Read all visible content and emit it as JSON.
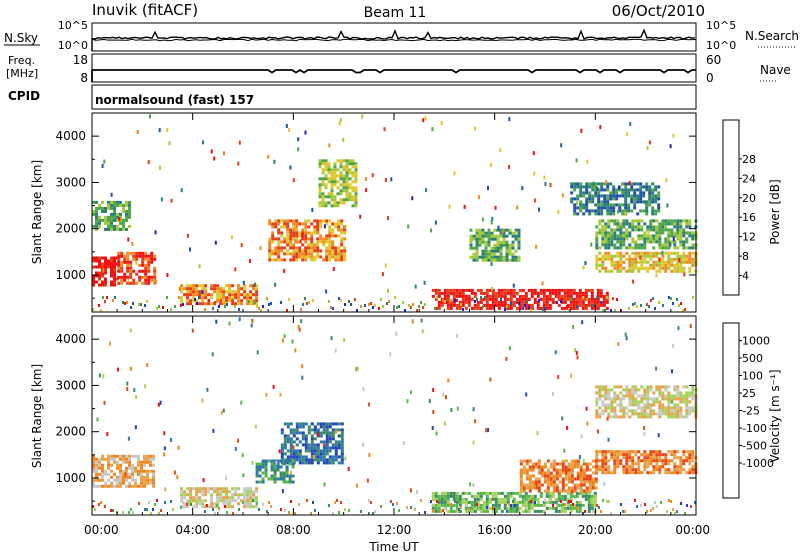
{
  "header": {
    "station": "Inuvik (fitACF)",
    "beam": "Beam 11",
    "date": "06/Oct/2010"
  },
  "strips": {
    "nsky": {
      "left_label": "N.Sky",
      "right_label": "N.Search",
      "left_ticks": [
        "10^5",
        "10^0"
      ],
      "right_ticks": [
        "10^5",
        "10^0"
      ]
    },
    "freq": {
      "left_label_line1": "Freq.",
      "left_label_line2": "[MHz]",
      "right_label": "Nave",
      "left_ticks": [
        "18",
        "8"
      ],
      "right_ticks": [
        "60",
        "0"
      ]
    },
    "cpid": {
      "left_label": "CPID",
      "text": "normalsound (fast) 157"
    }
  },
  "chart_data": [
    {
      "type": "heatmap",
      "quantity": "Power",
      "ylabel": "Slant Range [km]",
      "ylim": [
        200,
        4500
      ],
      "yticks": [
        1000,
        2000,
        3000,
        4000
      ],
      "xlim_hours": [
        0,
        24
      ],
      "colorbar": {
        "label": "Power [dB]",
        "ticks": [
          "4",
          "8",
          "12",
          "16",
          "20",
          "24",
          "28"
        ],
        "colors": [
          "#1e1ed2",
          "#2250b0",
          "#2a8078",
          "#4ea648",
          "#a6c83a",
          "#e0c82c",
          "#f08a22",
          "#e83c18",
          "#f01010"
        ]
      },
      "echo_regions": [
        {
          "t": [
            0.0,
            1.0
          ],
          "r": [
            800,
            1400
          ],
          "level": 8
        },
        {
          "t": [
            1.0,
            2.5
          ],
          "r": [
            800,
            1500
          ],
          "level": 7
        },
        {
          "t": [
            0.0,
            1.5
          ],
          "r": [
            2000,
            2600
          ],
          "level": 3
        },
        {
          "t": [
            3.5,
            6.5
          ],
          "r": [
            400,
            800
          ],
          "level": 6
        },
        {
          "t": [
            7.0,
            10.0
          ],
          "r": [
            1300,
            2200
          ],
          "level": 6
        },
        {
          "t": [
            9.0,
            10.5
          ],
          "r": [
            2500,
            3500
          ],
          "level": 4
        },
        {
          "t": [
            13.5,
            20.5
          ],
          "r": [
            250,
            700
          ],
          "level": 8
        },
        {
          "t": [
            15.0,
            17.0
          ],
          "r": [
            1300,
            2000
          ],
          "level": 3
        },
        {
          "t": [
            19.0,
            22.5
          ],
          "r": [
            2300,
            3000
          ],
          "level": 2
        },
        {
          "t": [
            20.0,
            24.0
          ],
          "r": [
            1100,
            1500
          ],
          "level": 5
        },
        {
          "t": [
            20.0,
            24.0
          ],
          "r": [
            1600,
            2200
          ],
          "level": 3
        }
      ]
    },
    {
      "type": "heatmap",
      "quantity": "Velocity",
      "ylabel": "Slant Range [km]",
      "ylim": [
        200,
        4500
      ],
      "yticks": [
        1000,
        2000,
        3000,
        4000
      ],
      "xlim_hours": [
        0,
        24
      ],
      "xticks": [
        "00:00",
        "04:00",
        "08:00",
        "12:00",
        "16:00",
        "20:00",
        "00:00"
      ],
      "xlabel": "Time UT",
      "colorbar": {
        "label": "Velocity [m s⁻¹]",
        "ticks": [
          "1000",
          "500",
          "100",
          "25",
          "-25",
          "-100",
          "-500",
          "-1000"
        ],
        "colors": [
          "#2244b8",
          "#2e74b0",
          "#3e8c66",
          "#56b84a",
          "#a8d05a",
          "#c8c8c8",
          "#e8a24c",
          "#f0861e",
          "#e84818",
          "#f01010"
        ]
      },
      "echo_regions": [
        {
          "t": [
            0.0,
            2.5
          ],
          "r": [
            800,
            1500
          ],
          "level": 6
        },
        {
          "t": [
            3.5,
            6.5
          ],
          "r": [
            400,
            800
          ],
          "level": 5
        },
        {
          "t": [
            7.5,
            10.0
          ],
          "r": [
            1300,
            2200
          ],
          "level": 1
        },
        {
          "t": [
            6.5,
            8.0
          ],
          "r": [
            900,
            1400
          ],
          "level": 2
        },
        {
          "t": [
            13.5,
            20.0
          ],
          "r": [
            250,
            700
          ],
          "level": 3
        },
        {
          "t": [
            17.0,
            20.0
          ],
          "r": [
            700,
            1400
          ],
          "level": 7
        },
        {
          "t": [
            20.0,
            24.0
          ],
          "r": [
            1100,
            1600
          ],
          "level": 7
        },
        {
          "t": [
            20.0,
            24.0
          ],
          "r": [
            2300,
            3000
          ],
          "level": 5
        }
      ]
    }
  ]
}
